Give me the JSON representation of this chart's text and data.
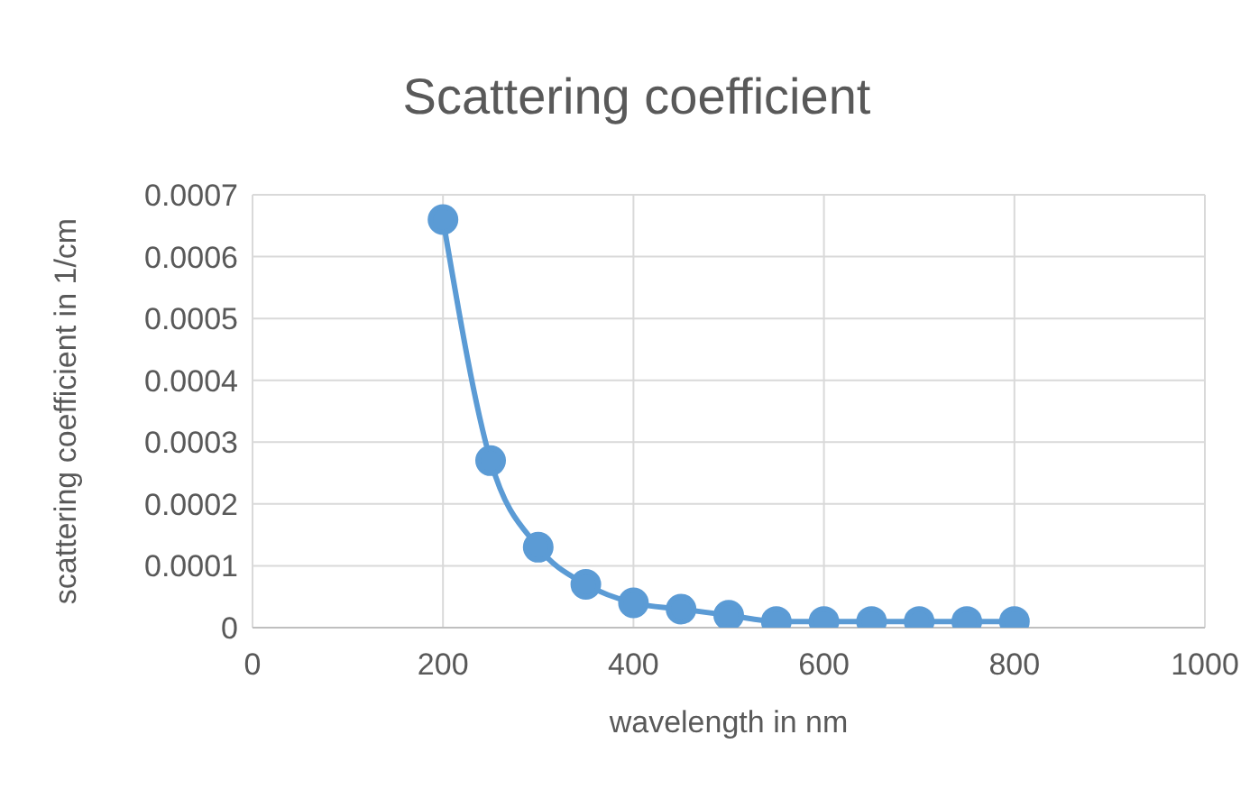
{
  "chart_data": {
    "type": "line",
    "title": "Scattering coefficient",
    "xlabel": "wavelength in nm",
    "ylabel": "scattering coefficient in 1/cm",
    "x": [
      200,
      250,
      300,
      350,
      400,
      450,
      500,
      550,
      600,
      650,
      700,
      750,
      800
    ],
    "series": [
      {
        "color": "#5b9bd5",
        "values": [
          0.00066,
          0.00027,
          0.00013,
          7e-05,
          4e-05,
          3e-05,
          2e-05,
          1e-05,
          1e-05,
          1e-05,
          1e-05,
          1e-05,
          1e-05
        ]
      }
    ],
    "xlim": [
      0,
      1000
    ],
    "xticks": [
      0,
      200,
      400,
      600,
      800,
      1000
    ],
    "ylim": [
      0,
      0.0007
    ],
    "yticks": [
      0,
      0.0001,
      0.0002,
      0.0003,
      0.0004,
      0.0005,
      0.0006,
      0.0007
    ],
    "grid": true,
    "marker": "circle",
    "line_style": "solid"
  }
}
